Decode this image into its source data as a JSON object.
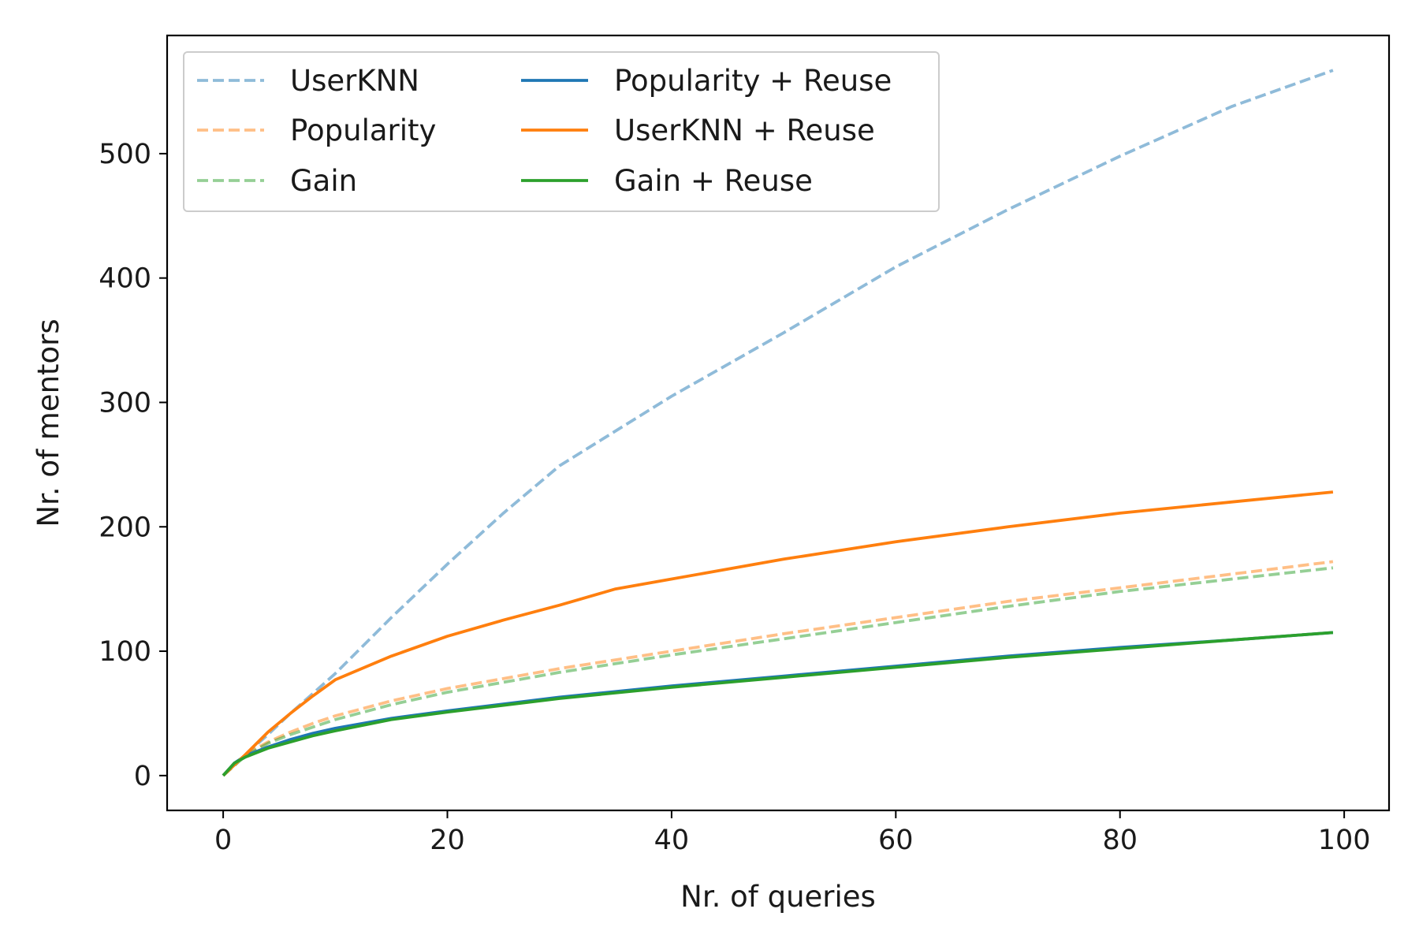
{
  "chart_data": {
    "type": "line",
    "title": "",
    "xlabel": "Nr. of queries",
    "ylabel": "Nr. of mentors",
    "xlim": [
      -5,
      104
    ],
    "ylim": [
      -28,
      595
    ],
    "xticks": [
      0,
      20,
      40,
      60,
      80,
      100
    ],
    "yticks": [
      0,
      100,
      200,
      300,
      400,
      500
    ],
    "grid": false,
    "legend_position": "top-left",
    "legend_columns": 2,
    "series": [
      {
        "name": "UserKNN",
        "color": "#1f77b4",
        "opacity": 0.5,
        "dash": "dashed",
        "x": [
          0,
          2,
          4,
          6,
          8,
          10,
          15,
          20,
          25,
          30,
          40,
          50,
          60,
          70,
          80,
          90,
          99
        ],
        "y": [
          0,
          17,
          33,
          50,
          66,
          82,
          127,
          170,
          211,
          249,
          305,
          356,
          409,
          455,
          498,
          538,
          567
        ]
      },
      {
        "name": "Popularity",
        "color": "#ff7f0e",
        "opacity": 0.5,
        "dash": "dashed",
        "x": [
          0,
          2,
          4,
          6,
          8,
          10,
          15,
          20,
          30,
          40,
          50,
          60,
          70,
          80,
          90,
          99
        ],
        "y": [
          0,
          17,
          27,
          35,
          42,
          48,
          60,
          70,
          86,
          100,
          114,
          127,
          140,
          151,
          162,
          172
        ]
      },
      {
        "name": "Gain",
        "color": "#2ca02c",
        "opacity": 0.5,
        "dash": "dashed",
        "x": [
          0,
          2,
          4,
          6,
          8,
          10,
          15,
          20,
          30,
          40,
          50,
          60,
          70,
          80,
          90,
          99
        ],
        "y": [
          0,
          16,
          26,
          33,
          39,
          45,
          57,
          67,
          83,
          97,
          110,
          123,
          136,
          148,
          158,
          167
        ]
      },
      {
        "name": "Popularity + Reuse",
        "color": "#1f77b4",
        "opacity": 1,
        "dash": "solid",
        "x": [
          0,
          1,
          2,
          4,
          6,
          8,
          10,
          15,
          20,
          30,
          40,
          50,
          60,
          70,
          80,
          90,
          99
        ],
        "y": [
          0,
          10,
          16,
          23,
          29,
          34,
          38,
          46,
          52,
          63,
          72,
          80,
          88,
          96,
          103,
          109,
          115
        ]
      },
      {
        "name": "UserKNN + Reuse",
        "color": "#ff7f0e",
        "opacity": 1,
        "dash": "solid",
        "x": [
          0,
          2,
          4,
          6,
          8,
          10,
          15,
          20,
          25,
          30,
          35,
          40,
          50,
          60,
          70,
          80,
          90,
          99
        ],
        "y": [
          0,
          17,
          35,
          50,
          64,
          77,
          96,
          112,
          125,
          137,
          150,
          158,
          174,
          188,
          200,
          211,
          220,
          228
        ]
      },
      {
        "name": "Gain + Reuse",
        "color": "#2ca02c",
        "opacity": 1,
        "dash": "solid",
        "x": [
          0,
          1,
          2,
          4,
          6,
          8,
          10,
          15,
          20,
          30,
          40,
          50,
          60,
          70,
          80,
          90,
          99
        ],
        "y": [
          0,
          10,
          15,
          22,
          27,
          32,
          36,
          45,
          51,
          62,
          71,
          79,
          87,
          95,
          102,
          109,
          115
        ]
      }
    ]
  }
}
